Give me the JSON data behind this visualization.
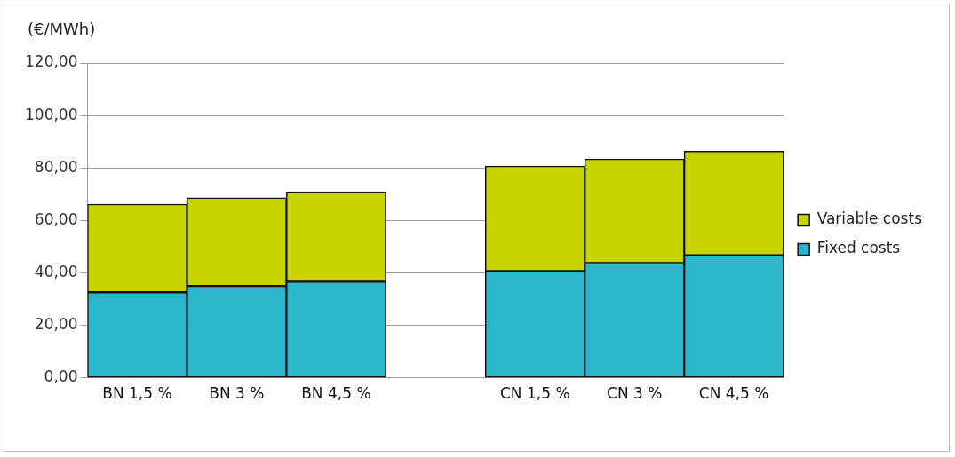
{
  "chart_data": {
    "type": "bar",
    "ylabel": "(€/MWh)",
    "categories": [
      "BN 1,5 %",
      "BN 3 %",
      "BN 4,5 %",
      null,
      "CN 1,5 %",
      "CN 3 %",
      "CN 4,5 %"
    ],
    "series": [
      {
        "name": "Fixed costs",
        "color": "#2ab7cb",
        "values": [
          32.6,
          35.0,
          36.6,
          null,
          40.7,
          43.7,
          46.7
        ]
      },
      {
        "name": "Variable costs",
        "color": "#c8d400",
        "values": [
          33.6,
          33.6,
          34.3,
          null,
          40.0,
          39.7,
          39.7
        ]
      }
    ],
    "stacked": true,
    "ylim": [
      0,
      120
    ],
    "yticks": [
      {
        "value": 0,
        "label": "0,00"
      },
      {
        "value": 20,
        "label": "20,00"
      },
      {
        "value": 40,
        "label": "40,00"
      },
      {
        "value": 60,
        "label": "60,00"
      },
      {
        "value": 80,
        "label": "80,00"
      },
      {
        "value": 100,
        "label": "100,00"
      },
      {
        "value": 120,
        "label": "120,00"
      }
    ],
    "grid": "y",
    "legend": "right"
  }
}
